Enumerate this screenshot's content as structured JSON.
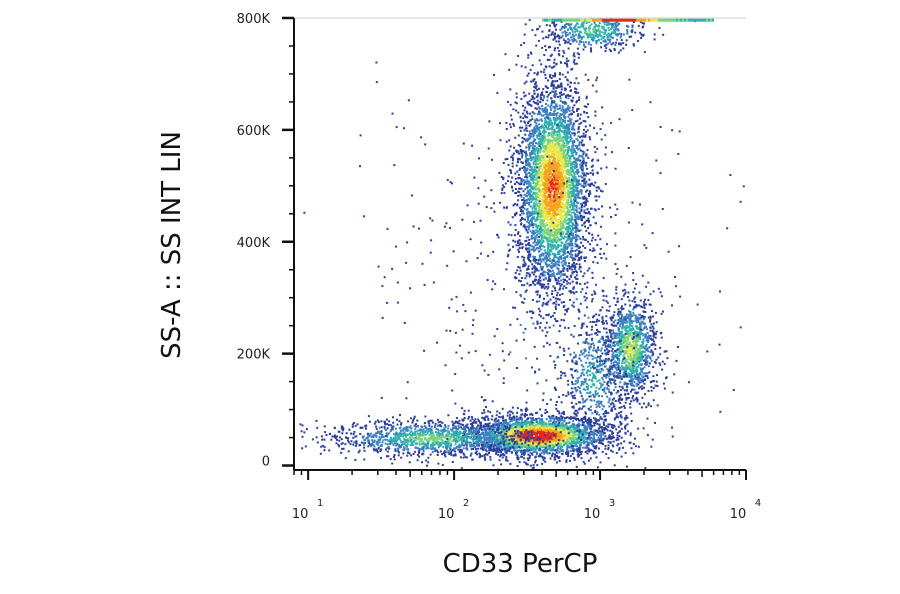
{
  "chart_data": {
    "type": "scatter",
    "title": "",
    "xlabel": "CD33 PerCP",
    "ylabel": "SS-A :: SS INT LIN",
    "x_scale": "log",
    "xlim": [
      8,
      10000
    ],
    "ylim": [
      -8000,
      800000
    ],
    "x_ticks": [
      {
        "value": 10,
        "base": "10",
        "exp": "1"
      },
      {
        "value": 100,
        "base": "10",
        "exp": "2"
      },
      {
        "value": 1000,
        "base": "10",
        "exp": "3"
      },
      {
        "value": 10000,
        "base": "10",
        "exp": "4"
      }
    ],
    "y_ticks": [
      {
        "value": 0,
        "label": "0"
      },
      {
        "value": 200000,
        "label": "200K"
      },
      {
        "value": 400000,
        "label": "400K"
      },
      {
        "value": 600000,
        "label": "600K"
      },
      {
        "value": 800000,
        "label": "800K"
      }
    ],
    "colormap": [
      "#2c3e9b",
      "#3c7fc0",
      "#2fb0b0",
      "#7bd37a",
      "#e8e84a",
      "#f7a21b",
      "#e4281e"
    ],
    "grid": false,
    "legend": "none",
    "populations": [
      {
        "cx": 370,
        "cy": 55000,
        "sx": 0.24,
        "sy": 18000,
        "count": 2600,
        "peak": 1.0
      },
      {
        "cx": 70,
        "cy": 50000,
        "sx": 0.35,
        "sy": 16000,
        "count": 1200,
        "peak": 0.45
      },
      {
        "cx": 470,
        "cy": 500000,
        "sx": 0.12,
        "sy": 95000,
        "count": 4200,
        "peak": 0.85
      },
      {
        "cx": 1600,
        "cy": 210000,
        "sx": 0.09,
        "sy": 45000,
        "count": 1100,
        "peak": 0.55
      },
      {
        "cx": 900,
        "cy": 160000,
        "sx": 0.12,
        "sy": 55000,
        "count": 500,
        "peak": 0.3
      },
      {
        "cx": 900,
        "cy": 780000,
        "sx": 0.18,
        "sy": 20000,
        "count": 500,
        "peak": 0.4
      },
      {
        "cx": 400,
        "cy": 300000,
        "sx": 0.55,
        "sy": 200000,
        "count": 500,
        "peak": 0.1
      }
    ],
    "saturation_band": {
      "x_from": 400,
      "x_to": 6000,
      "y": 797000
    }
  }
}
